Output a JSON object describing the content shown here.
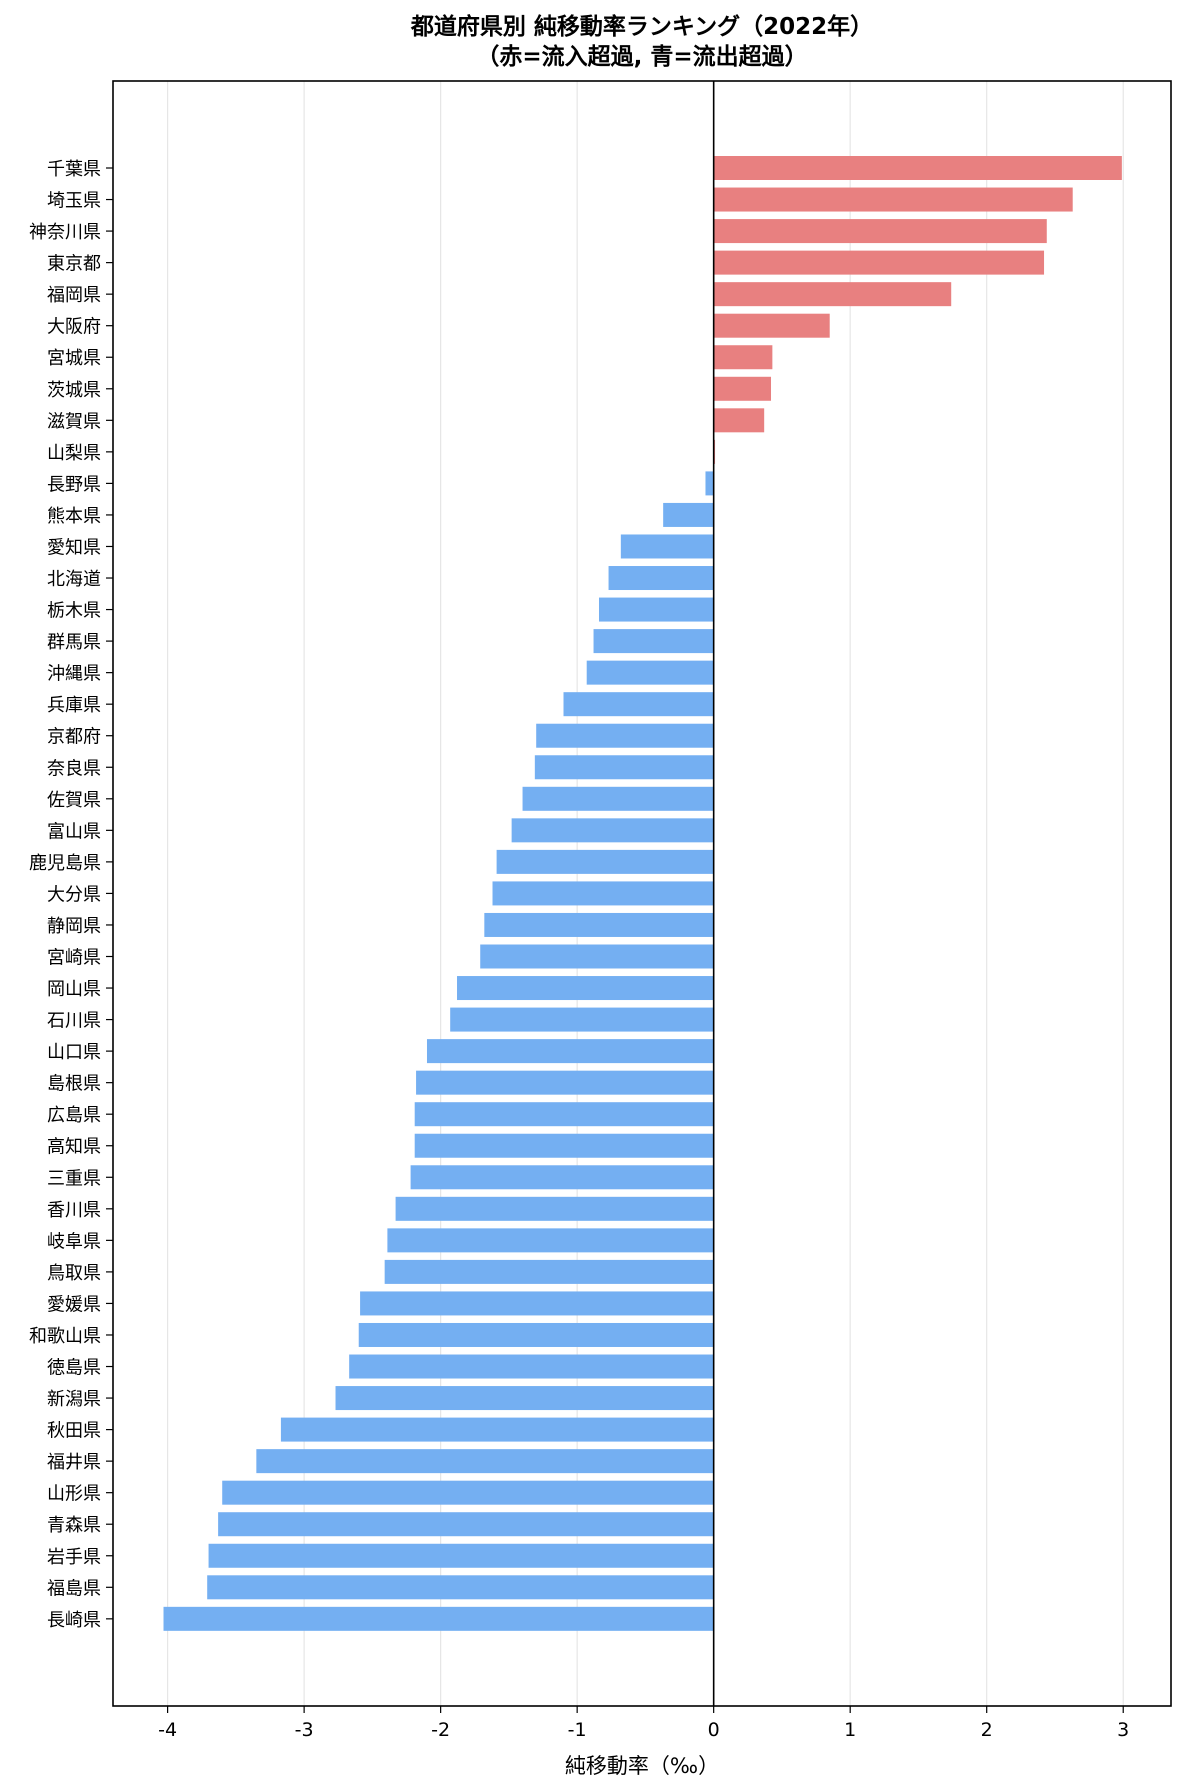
{
  "chart_data": {
    "type": "bar",
    "orientation": "horizontal",
    "title": "都道府県別 純移動率ランキング（2022年）",
    "subtitle": "（赤=流入超過, 青=流出超過）",
    "xlabel": "純移動率（‰）",
    "ylabel": "",
    "xlim": [
      -4.4,
      3.35
    ],
    "xticks": [
      -4,
      -3,
      -2,
      -1,
      0,
      1,
      2,
      3
    ],
    "xtick_labels": [
      "-4",
      "-3",
      "-2",
      "-1",
      "0",
      "1",
      "2",
      "3"
    ],
    "grid": "x",
    "legend": "none",
    "colors": {
      "positive": "#e88080",
      "negative": "#74aff2",
      "zero_line": "#000000",
      "grid": "#e6e6e6"
    },
    "categories": [
      "千葉県",
      "埼玉県",
      "神奈川県",
      "東京都",
      "福岡県",
      "大阪府",
      "宮城県",
      "茨城県",
      "滋賀県",
      "山梨県",
      "長野県",
      "熊本県",
      "愛知県",
      "北海道",
      "栃木県",
      "群馬県",
      "沖縄県",
      "兵庫県",
      "京都府",
      "奈良県",
      "佐賀県",
      "富山県",
      "鹿児島県",
      "大分県",
      "静岡県",
      "宮崎県",
      "岡山県",
      "石川県",
      "山口県",
      "島根県",
      "広島県",
      "高知県",
      "三重県",
      "香川県",
      "岐阜県",
      "鳥取県",
      "愛媛県",
      "和歌山県",
      "徳島県",
      "新潟県",
      "秋田県",
      "福井県",
      "山形県",
      "青森県",
      "岩手県",
      "福島県",
      "長崎県"
    ],
    "values": [
      2.99,
      2.63,
      2.44,
      2.42,
      1.74,
      0.85,
      0.43,
      0.42,
      0.37,
      0.01,
      -0.06,
      -0.37,
      -0.68,
      -0.77,
      -0.84,
      -0.88,
      -0.93,
      -1.1,
      -1.3,
      -1.31,
      -1.4,
      -1.48,
      -1.59,
      -1.62,
      -1.68,
      -1.71,
      -1.88,
      -1.93,
      -2.1,
      -2.18,
      -2.19,
      -2.19,
      -2.22,
      -2.33,
      -2.39,
      -2.41,
      -2.59,
      -2.6,
      -2.67,
      -2.77,
      -3.17,
      -3.35,
      -3.6,
      -3.63,
      -3.7,
      -3.71,
      -4.03
    ]
  }
}
